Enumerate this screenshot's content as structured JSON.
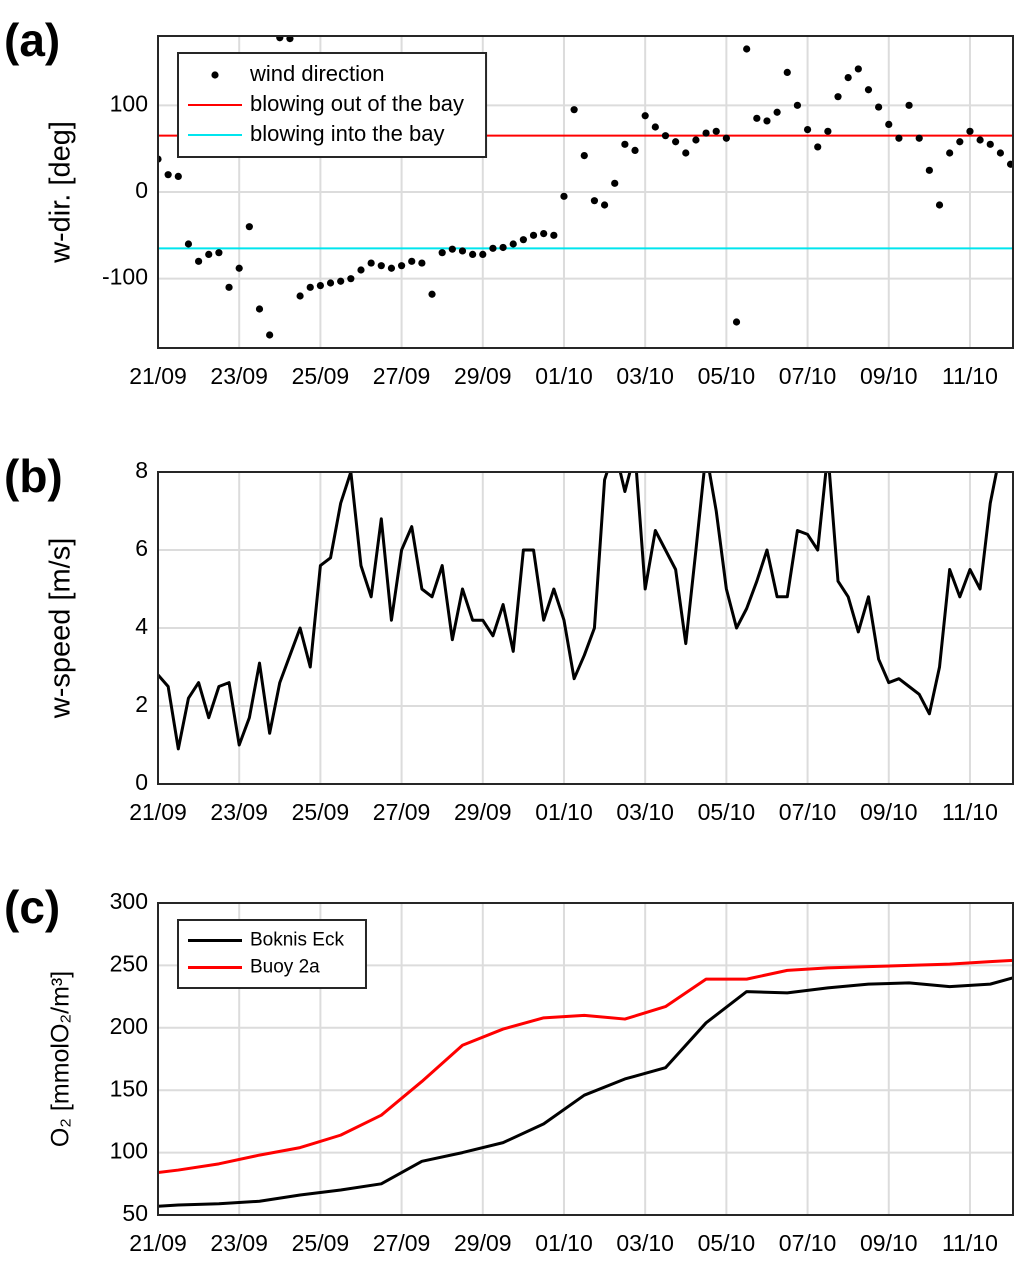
{
  "chart_data": [
    {
      "type": "scatter",
      "panel_label": "(a)",
      "ylabel": "w-dir. [deg]",
      "grid": true,
      "legend": "upper left",
      "xlim": [
        0,
        21.06
      ],
      "ylim": [
        -180,
        180
      ],
      "yticks": [
        -100,
        0,
        100
      ],
      "xticks": [
        {
          "value": 0,
          "label": "21/09"
        },
        {
          "value": 2,
          "label": "23/09"
        },
        {
          "value": 4,
          "label": "25/09"
        },
        {
          "value": 6,
          "label": "27/09"
        },
        {
          "value": 8,
          "label": "29/09"
        },
        {
          "value": 10,
          "label": "01/10"
        },
        {
          "value": 12,
          "label": "03/10"
        },
        {
          "value": 14,
          "label": "05/10"
        },
        {
          "value": 16,
          "label": "07/10"
        },
        {
          "value": 18,
          "label": "09/10"
        },
        {
          "value": 20,
          "label": "11/10"
        }
      ],
      "x": [
        0,
        0.25,
        0.5,
        0.75,
        1,
        1.25,
        1.5,
        1.75,
        2,
        2.25,
        2.5,
        2.75,
        3,
        3.25,
        3.5,
        3.75,
        4,
        4.25,
        4.5,
        4.75,
        5,
        5.25,
        5.5,
        5.75,
        6,
        6.25,
        6.5,
        6.75,
        7,
        7.25,
        7.5,
        7.75,
        8,
        8.25,
        8.5,
        8.75,
        9,
        9.25,
        9.5,
        9.75,
        10,
        10.25,
        10.5,
        10.75,
        11,
        11.25,
        11.5,
        11.75,
        12,
        12.25,
        12.5,
        12.75,
        13,
        13.25,
        13.5,
        13.75,
        14,
        14.25,
        14.5,
        14.75,
        15,
        15.25,
        15.5,
        15.75,
        16,
        16.25,
        16.5,
        16.75,
        17,
        17.25,
        17.5,
        17.75,
        18,
        18.25,
        18.5,
        18.75,
        19,
        19.25,
        19.5,
        19.75,
        20,
        20.25,
        20.5,
        20.75,
        21
      ],
      "series": [
        {
          "name": "wind direction",
          "color": "#000000",
          "values": [
            38,
            20,
            18,
            -60,
            -80,
            -72,
            -70,
            -110,
            -88,
            -40,
            -135,
            -165,
            178,
            177,
            -120,
            -110,
            -108,
            -105,
            -103,
            -100,
            -90,
            -82,
            -85,
            -88,
            -85,
            -80,
            -82,
            -118,
            -70,
            -66,
            -68,
            -72,
            -72,
            -65,
            -64,
            -60,
            -55,
            -50,
            -48,
            -50,
            -5,
            95,
            42,
            -10,
            -15,
            10,
            55,
            48,
            88,
            75,
            65,
            58,
            45,
            60,
            68,
            70,
            62,
            -150,
            165,
            85,
            82,
            92,
            138,
            100,
            72,
            52,
            70,
            110,
            132,
            142,
            118,
            98,
            78,
            62,
            100,
            62,
            25,
            -15,
            45,
            58,
            70,
            60,
            55,
            45,
            32
          ]
        }
      ],
      "hlines": [
        {
          "name": "blowing out of the bay",
          "color": "#ff0000",
          "value": 65
        },
        {
          "name": "blowing into the bay",
          "color": "#00e5ee",
          "value": -65
        }
      ]
    },
    {
      "type": "line",
      "panel_label": "(b)",
      "ylabel": "w-speed [m/s]",
      "grid": true,
      "xlim": [
        0,
        21.06
      ],
      "ylim": [
        0,
        8
      ],
      "yticks": [
        0,
        2,
        4,
        6,
        8
      ],
      "xticks": [
        {
          "value": 0,
          "label": "21/09"
        },
        {
          "value": 2,
          "label": "23/09"
        },
        {
          "value": 4,
          "label": "25/09"
        },
        {
          "value": 6,
          "label": "27/09"
        },
        {
          "value": 8,
          "label": "29/09"
        },
        {
          "value": 10,
          "label": "01/10"
        },
        {
          "value": 12,
          "label": "03/10"
        },
        {
          "value": 14,
          "label": "05/10"
        },
        {
          "value": 16,
          "label": "07/10"
        },
        {
          "value": 18,
          "label": "09/10"
        },
        {
          "value": 20,
          "label": "11/10"
        }
      ],
      "x": [
        0,
        0.25,
        0.5,
        0.75,
        1,
        1.25,
        1.5,
        1.75,
        2,
        2.25,
        2.5,
        2.75,
        3,
        3.25,
        3.5,
        3.75,
        4,
        4.25,
        4.5,
        4.75,
        5,
        5.25,
        5.5,
        5.75,
        6,
        6.25,
        6.5,
        6.75,
        7,
        7.25,
        7.5,
        7.75,
        8,
        8.25,
        8.5,
        8.75,
        9,
        9.25,
        9.5,
        9.75,
        10,
        10.25,
        10.5,
        10.75,
        11,
        11.25,
        11.5,
        11.75,
        12,
        12.25,
        12.5,
        12.75,
        13,
        13.25,
        13.5,
        13.75,
        14,
        14.25,
        14.5,
        14.75,
        15,
        15.25,
        15.5,
        15.75,
        16,
        16.25,
        16.5,
        16.75,
        17,
        17.25,
        17.5,
        17.75,
        18,
        18.25,
        18.5,
        18.75,
        19,
        19.25,
        19.5,
        19.75,
        20,
        20.25,
        20.5,
        20.75,
        21
      ],
      "color": "#000000",
      "values": [
        2.8,
        2.5,
        0.9,
        2.2,
        2.6,
        1.7,
        2.5,
        2.6,
        1.0,
        1.7,
        3.1,
        1.3,
        2.6,
        3.3,
        4.0,
        3.0,
        5.6,
        5.8,
        7.2,
        8.0,
        5.6,
        4.8,
        6.8,
        4.2,
        6.0,
        6.6,
        5.0,
        4.8,
        5.6,
        3.7,
        5.0,
        4.2,
        4.2,
        3.8,
        4.6,
        3.4,
        6.0,
        6.0,
        4.2,
        5.0,
        4.2,
        2.7,
        3.3,
        4.0,
        7.8,
        8.6,
        7.5,
        8.5,
        5.0,
        6.5,
        6.0,
        5.5,
        3.6,
        6.0,
        8.5,
        7.0,
        5.0,
        4.0,
        4.5,
        5.2,
        6.0,
        4.8,
        4.8,
        6.5,
        6.4,
        6.0,
        8.5,
        5.2,
        4.8,
        3.9,
        4.8,
        3.2,
        2.6,
        2.7,
        2.5,
        2.3,
        1.8,
        3.0,
        5.5,
        4.8,
        5.5,
        5.0,
        7.2,
        8.5,
        9.0
      ]
    },
    {
      "type": "line",
      "panel_label": "(c)",
      "ylabel": "O₂ [mmolO₂/m³]",
      "grid": true,
      "legend": "upper left",
      "xlim": [
        0,
        21.06
      ],
      "ylim": [
        50,
        300
      ],
      "yticks": [
        50,
        100,
        150,
        200,
        250,
        300
      ],
      "xticks": [
        {
          "value": 0,
          "label": "21/09"
        },
        {
          "value": 2,
          "label": "23/09"
        },
        {
          "value": 4,
          "label": "25/09"
        },
        {
          "value": 6,
          "label": "27/09"
        },
        {
          "value": 8,
          "label": "29/09"
        },
        {
          "value": 10,
          "label": "01/10"
        },
        {
          "value": 12,
          "label": "03/10"
        },
        {
          "value": 14,
          "label": "05/10"
        },
        {
          "value": 16,
          "label": "07/10"
        },
        {
          "value": 18,
          "label": "09/10"
        },
        {
          "value": 20,
          "label": "11/10"
        }
      ],
      "x": [
        0,
        0.5,
        1.5,
        2.5,
        3.5,
        4.5,
        5.5,
        6.5,
        7.5,
        8.5,
        9.5,
        10.5,
        11.5,
        12.5,
        13.5,
        14.5,
        15.5,
        16.5,
        17.5,
        18.5,
        19.5,
        20.5,
        21.06
      ],
      "series": [
        {
          "name": "Boknis Eck",
          "color": "#000000",
          "values": [
            57,
            58,
            59,
            61,
            66,
            70,
            75,
            93,
            100,
            108,
            123,
            146,
            159,
            168,
            204,
            229,
            228,
            232,
            235,
            236,
            233,
            235,
            240
          ]
        },
        {
          "name": "Buoy 2a",
          "color": "#ff0000",
          "values": [
            84,
            86,
            91,
            98,
            104,
            114,
            130,
            157,
            186,
            199,
            208,
            210,
            207,
            217,
            239,
            239,
            246,
            248,
            249,
            250,
            251,
            253,
            254
          ]
        }
      ]
    }
  ]
}
